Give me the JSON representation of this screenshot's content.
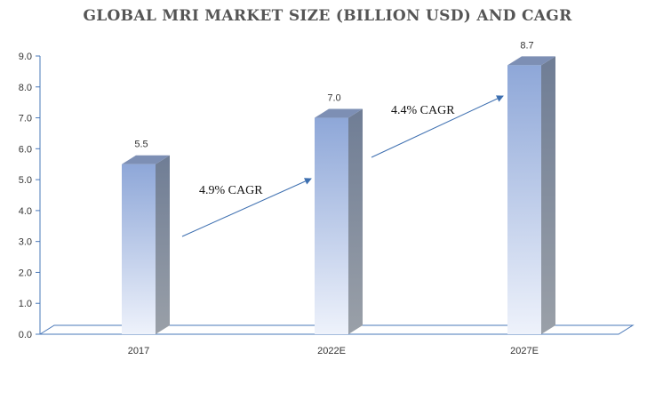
{
  "chart_data": {
    "type": "bar",
    "title": "GLOBAL MRI MARKET SIZE (BILLION USD) AND CAGR",
    "categories": [
      "2017",
      "2022E",
      "2027E"
    ],
    "values": [
      5.5,
      7.0,
      8.7
    ],
    "data_labels": [
      "5.5",
      "7.0",
      "8.7"
    ],
    "ylim": [
      0,
      9
    ],
    "yticks": [
      "0.0",
      "1.0",
      "2.0",
      "3.0",
      "4.0",
      "5.0",
      "6.0",
      "7.0",
      "8.0",
      "9.0"
    ],
    "grid": false,
    "annotations": [
      {
        "text": "4.9% CAGR",
        "from_category": "2017",
        "to_category": "2022E"
      },
      {
        "text": "4.4% CAGR",
        "from_category": "2022E",
        "to_category": "2027E"
      }
    ],
    "colors": {
      "bar_top": "#8ea7d8",
      "bar_bottom": "#eef2fb",
      "bar_side": "#6f7d95",
      "bar_cap": "#7d8fb4",
      "axis": "#4a78b8",
      "arrow": "#3d6fb0"
    }
  }
}
